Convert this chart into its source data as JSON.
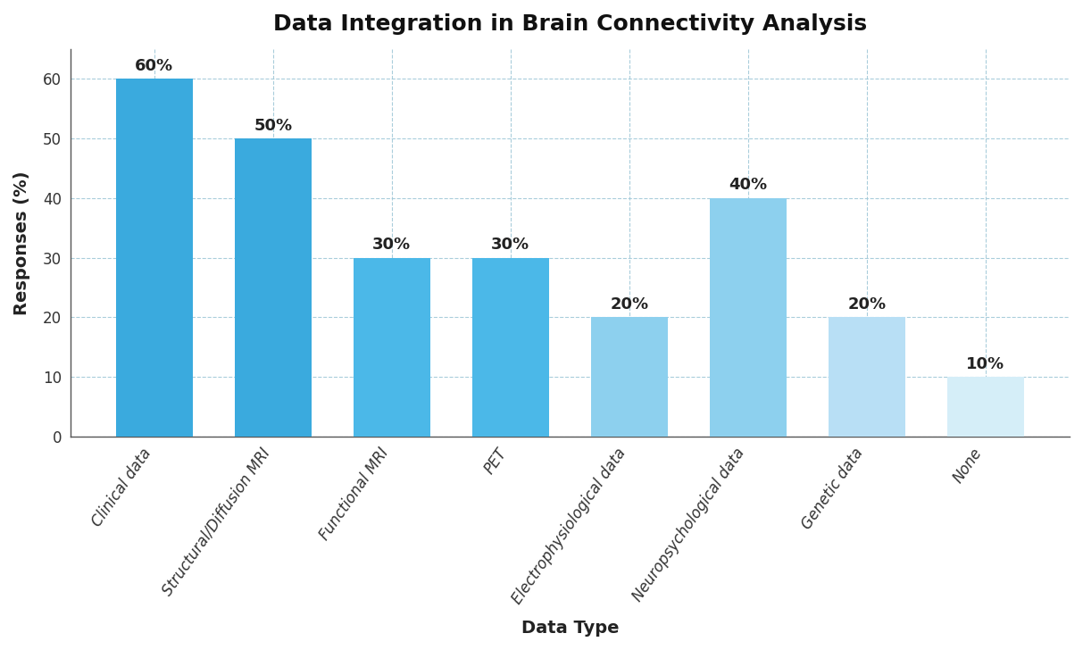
{
  "title": "Data Integration in Brain Connectivity Analysis",
  "xlabel": "Data Type",
  "ylabel": "Responses (%)",
  "categories": [
    "Clinical data",
    "Structural/Diffusion MRI",
    "Functional MRI",
    "PET",
    "Electrophysiological data",
    "Neuropsychological data",
    "Genetic data",
    "None"
  ],
  "values": [
    60,
    50,
    30,
    30,
    20,
    40,
    20,
    10
  ],
  "bar_colors": [
    "#3AAADE",
    "#3AAADE",
    "#4BB8E8",
    "#4BB8E8",
    "#8DD0EE",
    "#8DD0EE",
    "#B8DFF5",
    "#D5EEF8"
  ],
  "ylim": [
    0,
    65
  ],
  "yticks": [
    0,
    10,
    20,
    30,
    40,
    50,
    60
  ],
  "background_color": "#FFFFFF",
  "grid_color": "#A0C8D8",
  "title_fontsize": 18,
  "label_fontsize": 14,
  "tick_fontsize": 12,
  "annotation_fontsize": 13
}
